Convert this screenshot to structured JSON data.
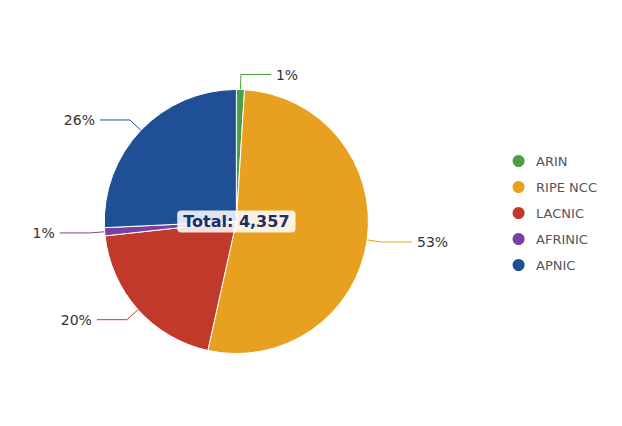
{
  "chart_data": {
    "type": "pie",
    "categories": [
      "ARIN",
      "RIPE NCC",
      "LACNIC",
      "AFRINIC",
      "APNIC"
    ],
    "values": [
      1,
      53,
      20,
      1,
      26
    ],
    "value_labels": [
      "1%",
      "53%",
      "20%",
      "1%",
      "26%"
    ],
    "colors": [
      "#4aA043",
      "#E8A020",
      "#c0392b",
      "#7B3FA0",
      "#1f5096"
    ],
    "data_labels": true,
    "annotations": [
      "Total: 4,357"
    ],
    "legend": "right"
  }
}
